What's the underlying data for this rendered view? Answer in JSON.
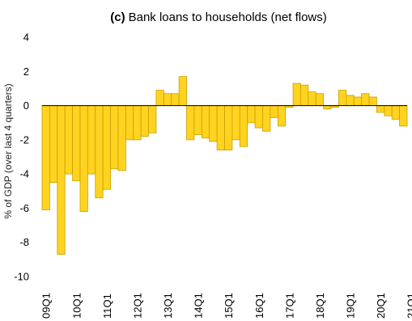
{
  "chart_data": {
    "type": "bar",
    "title_prefix": "(c)",
    "title": "Bank loans to households (net flows)",
    "ylabel": "% of GDP (over last 4 quarters)",
    "xlabel": "",
    "ylim": [
      -10,
      4
    ],
    "yticks": [
      4,
      2,
      0,
      -2,
      -4,
      -6,
      -8,
      -10
    ],
    "xtick_labels": [
      "09Q1",
      "10Q1",
      "11Q1",
      "12Q1",
      "13Q1",
      "14Q1",
      "15Q1",
      "16Q1",
      "17Q1",
      "18Q1",
      "19Q1",
      "20Q1",
      "21Q1"
    ],
    "first_period": "09Q1",
    "grid": false,
    "legend": "none",
    "bar_color": "#FFD31F",
    "bar_edge_color": "#C9A000",
    "series": [
      {
        "values": [
          -6.1,
          -4.5,
          -8.7,
          -4.0,
          -4.4,
          -6.2,
          -4.0,
          -5.4,
          -4.9,
          -3.7,
          -3.8,
          -2.0,
          -2.0,
          -1.8,
          -1.6,
          0.9,
          0.7,
          0.7,
          1.7,
          -2.0,
          -1.7,
          -1.9,
          -2.1,
          -2.6,
          -2.6,
          -2.0,
          -2.4,
          -1.0,
          -1.3,
          -1.5,
          -0.7,
          -1.2,
          -0.1,
          1.3,
          1.2,
          0.8,
          0.7,
          -0.2,
          -0.1,
          0.9,
          0.6,
          0.5,
          0.7,
          0.5,
          -0.4,
          -0.6,
          -0.8,
          -1.2
        ]
      }
    ]
  }
}
